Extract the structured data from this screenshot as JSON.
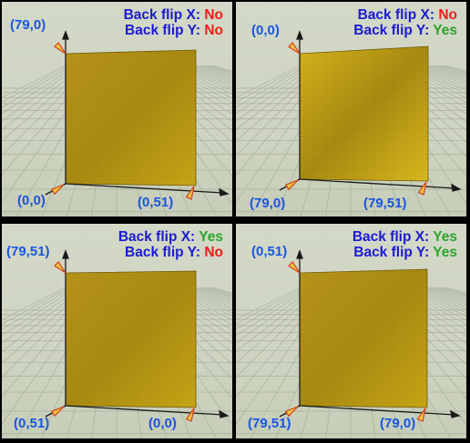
{
  "panels": [
    {
      "flip_x_label": "Back flip X:",
      "flip_x_value": "No",
      "flip_y_label": "Back flip Y:",
      "flip_y_value": "No",
      "top_corner": "(79,0)",
      "origin_corner": "(0,0)",
      "right_corner": "(0,51)"
    },
    {
      "flip_x_label": "Back flip X:",
      "flip_x_value": "No",
      "flip_y_label": "Back flip Y:",
      "flip_y_value": "Yes",
      "top_corner": "(0,0)",
      "origin_corner": "(79,0)",
      "right_corner": "(79,51)"
    },
    {
      "flip_x_label": "Back flip X:",
      "flip_x_value": "Yes",
      "flip_y_label": "Back flip Y:",
      "flip_y_value": "No",
      "top_corner": "(79,51)",
      "origin_corner": "(0,51)",
      "right_corner": "(0,0)"
    },
    {
      "flip_x_label": "Back flip X:",
      "flip_x_value": "Yes",
      "flip_y_label": "Back flip Y:",
      "flip_y_value": "Yes",
      "top_corner": "(0,51)",
      "origin_corner": "(79,51)",
      "right_corner": "(79,0)"
    }
  ],
  "colors": {
    "no": "#e8201a",
    "yes": "#2aa52a",
    "label": "#1b1bd0",
    "coordinate": "#1a55e0",
    "surface": "#c9a414",
    "background": "#d1d6c4"
  }
}
